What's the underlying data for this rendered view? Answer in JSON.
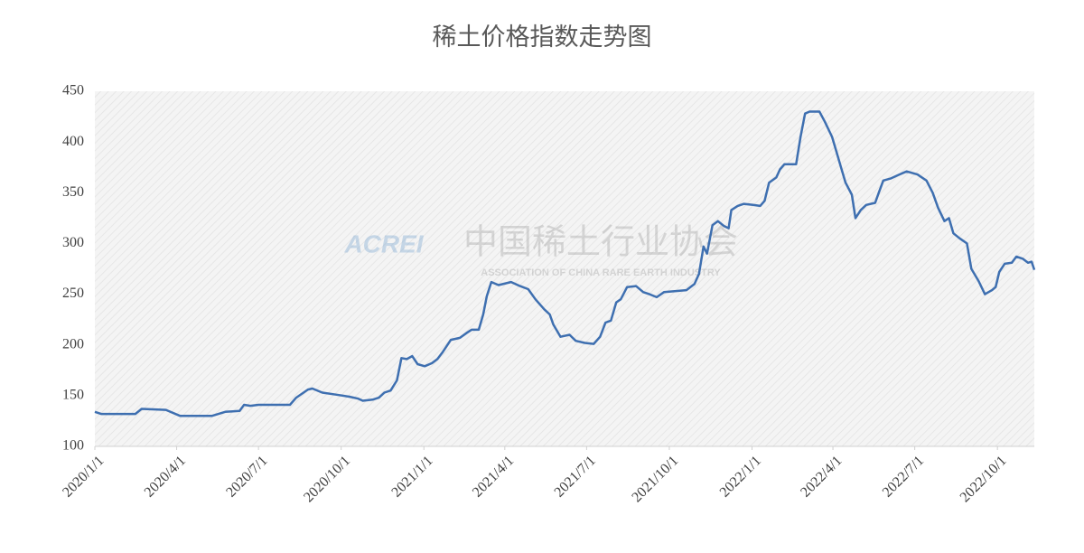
{
  "chart_data": {
    "type": "line",
    "title": "稀土价格指数走势图",
    "watermark_logo": "ACREI",
    "watermark_name": "中国稀土行业协会",
    "watermark_sub": "ASSOCIATION OF CHINA RARE EARTH INDUSTRY",
    "xlim": [
      "2020/1/1",
      "2022/11/11"
    ],
    "xticks": [
      "2020/1/1",
      "2020/4/1",
      "2020/7/1",
      "2020/10/1",
      "2021/1/1",
      "2021/4/1",
      "2021/7/1",
      "2021/10/1",
      "2022/1/1",
      "2022/4/1",
      "2022/7/1",
      "2022/10/1"
    ],
    "ylim": [
      100,
      450
    ],
    "yticks": [
      100,
      150,
      200,
      250,
      300,
      350,
      400,
      450
    ],
    "grid": false,
    "x": [
      "2020/1/1",
      "2020/1/8",
      "2020/2/15",
      "2020/2/22",
      "2020/3/20",
      "2020/4/5",
      "2020/5/10",
      "2020/5/25",
      "2020/6/10",
      "2020/6/15",
      "2020/6/22",
      "2020/7/1",
      "2020/8/5",
      "2020/8/12",
      "2020/8/25",
      "2020/8/30",
      "2020/9/10",
      "2020/9/25",
      "2020/10/10",
      "2020/10/20",
      "2020/10/25",
      "2020/11/5",
      "2020/11/12",
      "2020/11/18",
      "2020/11/25",
      "2020/12/2",
      "2020/12/7",
      "2020/12/13",
      "2020/12/19",
      "2020/12/25",
      "2021/1/2",
      "2021/1/10",
      "2021/1/16",
      "2021/1/22",
      "2021/1/31",
      "2021/2/10",
      "2021/2/18",
      "2021/2/23",
      "2021/3/3",
      "2021/3/8",
      "2021/3/12",
      "2021/3/17",
      "2021/3/25",
      "2021/4/8",
      "2021/4/18",
      "2021/4/27",
      "2021/5/5",
      "2021/5/15",
      "2021/5/21",
      "2021/5/25",
      "2021/6/2",
      "2021/6/12",
      "2021/6/19",
      "2021/6/29",
      "2021/7/9",
      "2021/7/16",
      "2021/7/22",
      "2021/7/28",
      "2021/8/3",
      "2021/8/8",
      "2021/8/15",
      "2021/8/25",
      "2021/9/2",
      "2021/9/9",
      "2021/9/17",
      "2021/9/25",
      "2021/10/7",
      "2021/10/20",
      "2021/10/29",
      "2021/11/3",
      "2021/11/8",
      "2021/11/12",
      "2021/11/18",
      "2021/11/24",
      "2021/12/1",
      "2021/12/6",
      "2021/12/9",
      "2021/12/16",
      "2021/12/23",
      "2022/1/2",
      "2022/1/10",
      "2022/1/15",
      "2022/1/20",
      "2022/1/28",
      "2022/2/1",
      "2022/2/6",
      "2022/2/19",
      "2022/2/24",
      "2022/3/1",
      "2022/3/6",
      "2022/3/17",
      "2022/3/23",
      "2022/3/31",
      "2022/4/5",
      "2022/4/10",
      "2022/4/15",
      "2022/4/22",
      "2022/4/26",
      "2022/5/2",
      "2022/5/8",
      "2022/5/18",
      "2022/5/22",
      "2022/5/27",
      "2022/6/4",
      "2022/6/14",
      "2022/6/22",
      "2022/7/4",
      "2022/7/14",
      "2022/7/21",
      "2022/7/27",
      "2022/8/3",
      "2022/8/8",
      "2022/8/13",
      "2022/8/20",
      "2022/8/28",
      "2022/9/2",
      "2022/9/10",
      "2022/9/17",
      "2022/9/25",
      "2022/9/29",
      "2022/10/3",
      "2022/10/9",
      "2022/10/17",
      "2022/10/22",
      "2022/10/29",
      "2022/11/4",
      "2022/11/8",
      "2022/11/11"
    ],
    "series": [
      {
        "color": "#3e6fb0",
        "values": [
          134,
          132,
          132,
          137,
          136,
          130,
          130,
          134,
          135,
          141,
          140,
          141,
          141,
          148,
          156,
          157,
          153,
          151,
          149,
          147,
          145,
          146,
          148,
          153,
          155,
          165,
          187,
          186,
          189,
          181,
          179,
          182,
          186,
          193,
          205,
          207,
          212,
          215,
          215,
          230,
          248,
          262,
          259,
          262,
          258,
          255,
          245,
          235,
          230,
          220,
          208,
          210,
          204,
          202,
          201,
          208,
          222,
          224,
          242,
          245,
          257,
          258,
          252,
          250,
          247,
          252,
          253,
          254,
          260,
          270,
          297,
          290,
          318,
          322,
          317,
          315,
          333,
          337,
          339,
          338,
          337,
          342,
          360,
          365,
          373,
          378,
          378,
          405,
          428,
          430,
          430,
          420,
          405,
          390,
          375,
          360,
          348,
          325,
          333,
          338,
          340,
          350,
          362,
          364,
          368,
          371,
          368,
          362,
          350,
          335,
          322,
          325,
          310,
          305,
          300,
          275,
          263,
          250,
          254,
          257,
          272,
          280,
          281,
          287,
          285,
          281,
          282,
          274
        ]
      }
    ]
  }
}
